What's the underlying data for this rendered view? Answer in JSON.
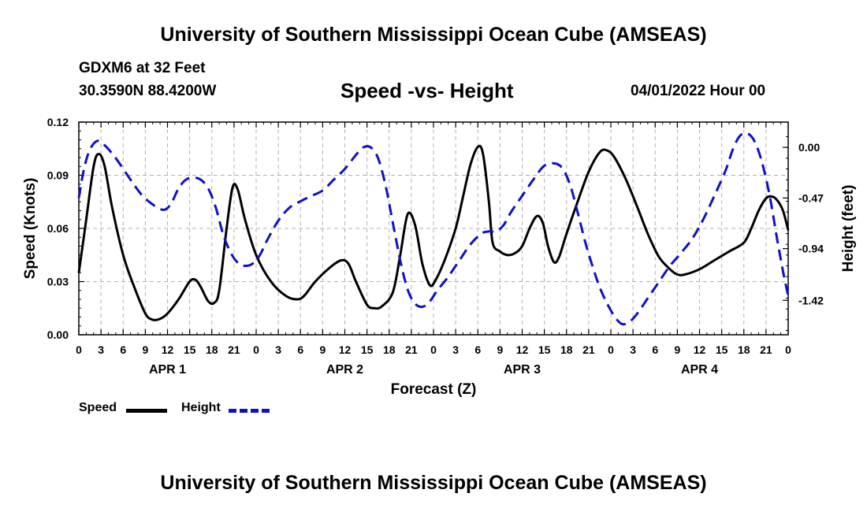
{
  "header": {
    "title": "University of Southern Mississippi Ocean Cube (AMSEAS)",
    "station": "GDXM6 at 32 Feet",
    "coords": "30.3590N  88.4200W",
    "subtitle": "Speed -vs- Height",
    "datetime": "04/01/2022 Hour 00"
  },
  "footer": {
    "title": "University of Southern Mississippi Ocean Cube (AMSEAS)"
  },
  "legend": {
    "speed_label": "Speed",
    "height_label": "Height"
  },
  "colors": {
    "speed": "#000000",
    "height": "#1010c8",
    "grid": "#b0b0b0"
  },
  "chart_data": {
    "type": "line",
    "title": "Speed -vs- Height",
    "xlabel": "Forecast (Z)",
    "ylabel": "Speed (Knots)",
    "y2label": "Height (feet)",
    "grid": true,
    "xlim": [
      0,
      96
    ],
    "ylim": [
      0,
      0.12
    ],
    "y2lim": [
      -1.74,
      0.235
    ],
    "x_ticks": [
      0,
      3,
      6,
      9,
      12,
      15,
      18,
      21,
      24,
      27,
      30,
      33,
      36,
      39,
      42,
      45,
      48,
      51,
      54,
      57,
      60,
      63,
      66,
      69,
      72,
      75,
      78,
      81,
      84,
      87,
      90,
      93,
      96
    ],
    "x_tick_labels": [
      "0",
      "3",
      "6",
      "9",
      "12",
      "15",
      "18",
      "21",
      "0",
      "3",
      "6",
      "9",
      "12",
      "15",
      "18",
      "21",
      "0",
      "3",
      "6",
      "9",
      "12",
      "15",
      "18",
      "21",
      "0",
      "3",
      "6",
      "9",
      "12",
      "15",
      "18",
      "21",
      "0"
    ],
    "y_ticks": [
      0,
      0.03,
      0.06,
      0.09,
      0.12
    ],
    "y_tick_labels": [
      "0.00",
      "0.03",
      "0.06",
      "0.09",
      "0.12"
    ],
    "y2_ticks": [
      0,
      -0.47,
      -0.94,
      -1.42
    ],
    "y2_tick_labels": [
      "0.00",
      "-0.47",
      "-0.94",
      "-1.42"
    ],
    "day_labels": [
      {
        "x": 12,
        "label": "APR 1"
      },
      {
        "x": 36,
        "label": "APR 2"
      },
      {
        "x": 60,
        "label": "APR 3"
      },
      {
        "x": 84,
        "label": "APR 4"
      }
    ],
    "series": [
      {
        "name": "Speed",
        "axis": "left",
        "style": "solid",
        "points": [
          [
            0,
            0.035
          ],
          [
            1,
            0.065
          ],
          [
            2,
            0.095
          ],
          [
            2.7,
            0.102
          ],
          [
            3.5,
            0.095
          ],
          [
            4.5,
            0.072
          ],
          [
            6,
            0.045
          ],
          [
            7.5,
            0.027
          ],
          [
            9,
            0.012
          ],
          [
            10,
            0.0085
          ],
          [
            11,
            0.009
          ],
          [
            12,
            0.012
          ],
          [
            13.5,
            0.02
          ],
          [
            15,
            0.03
          ],
          [
            15.8,
            0.031
          ],
          [
            16.5,
            0.027
          ],
          [
            17.5,
            0.019
          ],
          [
            18.3,
            0.018
          ],
          [
            19,
            0.025
          ],
          [
            20,
            0.06
          ],
          [
            20.8,
            0.083
          ],
          [
            21.5,
            0.082
          ],
          [
            22.5,
            0.065
          ],
          [
            24,
            0.045
          ],
          [
            26,
            0.03
          ],
          [
            28,
            0.022
          ],
          [
            29.5,
            0.02
          ],
          [
            30.5,
            0.022
          ],
          [
            32,
            0.03
          ],
          [
            34,
            0.038
          ],
          [
            35.5,
            0.042
          ],
          [
            36.5,
            0.04
          ],
          [
            37.5,
            0.03
          ],
          [
            39,
            0.017
          ],
          [
            40,
            0.015
          ],
          [
            41,
            0.016
          ],
          [
            42.5,
            0.024
          ],
          [
            43.5,
            0.045
          ],
          [
            44.5,
            0.068
          ],
          [
            45.5,
            0.062
          ],
          [
            46.5,
            0.04
          ],
          [
            47.5,
            0.028
          ],
          [
            48.3,
            0.031
          ],
          [
            49.5,
            0.042
          ],
          [
            51,
            0.06
          ],
          [
            52,
            0.078
          ],
          [
            53,
            0.096
          ],
          [
            54,
            0.106
          ],
          [
            54.7,
            0.102
          ],
          [
            55.5,
            0.075
          ],
          [
            56,
            0.052
          ],
          [
            57,
            0.047
          ],
          [
            58,
            0.045
          ],
          [
            59,
            0.046
          ],
          [
            60,
            0.05
          ],
          [
            61,
            0.06
          ],
          [
            62,
            0.067
          ],
          [
            62.8,
            0.063
          ],
          [
            63.5,
            0.05
          ],
          [
            64.3,
            0.041
          ],
          [
            65,
            0.044
          ],
          [
            66,
            0.057
          ],
          [
            67.5,
            0.075
          ],
          [
            69,
            0.092
          ],
          [
            70.5,
            0.103
          ],
          [
            71.5,
            0.104
          ],
          [
            72.5,
            0.1
          ],
          [
            74,
            0.088
          ],
          [
            75.5,
            0.073
          ],
          [
            77,
            0.057
          ],
          [
            78.5,
            0.044
          ],
          [
            80,
            0.037
          ],
          [
            81,
            0.034
          ],
          [
            82,
            0.034
          ],
          [
            84,
            0.037
          ],
          [
            86,
            0.042
          ],
          [
            88,
            0.047
          ],
          [
            90,
            0.052
          ],
          [
            91,
            0.06
          ],
          [
            92,
            0.07
          ],
          [
            93,
            0.077
          ],
          [
            93.8,
            0.078
          ],
          [
            94.5,
            0.076
          ],
          [
            95.3,
            0.07
          ],
          [
            96,
            0.059
          ]
        ]
      },
      {
        "name": "Height",
        "axis": "right",
        "style": "dashed",
        "points": [
          [
            0,
            -0.47
          ],
          [
            0.7,
            -0.2
          ],
          [
            1.5,
            -0.02
          ],
          [
            2.5,
            0.06
          ],
          [
            3.5,
            0.02
          ],
          [
            5,
            -0.1
          ],
          [
            7,
            -0.3
          ],
          [
            8.5,
            -0.44
          ],
          [
            10,
            -0.53
          ],
          [
            11.5,
            -0.58
          ],
          [
            12.5,
            -0.52
          ],
          [
            13.5,
            -0.38
          ],
          [
            14.5,
            -0.3
          ],
          [
            15.5,
            -0.28
          ],
          [
            16.5,
            -0.3
          ],
          [
            17.5,
            -0.38
          ],
          [
            18.5,
            -0.55
          ],
          [
            19.5,
            -0.8
          ],
          [
            20.5,
            -0.97
          ],
          [
            21.5,
            -1.07
          ],
          [
            22.5,
            -1.1
          ],
          [
            23.5,
            -1.08
          ],
          [
            24.5,
            -1.0
          ],
          [
            25.5,
            -0.86
          ],
          [
            27,
            -0.68
          ],
          [
            28.5,
            -0.56
          ],
          [
            30,
            -0.5
          ],
          [
            31.5,
            -0.45
          ],
          [
            33,
            -0.4
          ],
          [
            34.5,
            -0.3
          ],
          [
            36,
            -0.2
          ],
          [
            37.5,
            -0.07
          ],
          [
            38.5,
            0.0
          ],
          [
            39.5,
            0.0
          ],
          [
            40.5,
            -0.1
          ],
          [
            41.5,
            -0.35
          ],
          [
            42.5,
            -0.7
          ],
          [
            43.5,
            -1.05
          ],
          [
            44.5,
            -1.32
          ],
          [
            45.5,
            -1.45
          ],
          [
            46.5,
            -1.48
          ],
          [
            47.5,
            -1.43
          ],
          [
            48.5,
            -1.33
          ],
          [
            50,
            -1.2
          ],
          [
            51.5,
            -1.05
          ],
          [
            53,
            -0.9
          ],
          [
            54.5,
            -0.8
          ],
          [
            55.5,
            -0.78
          ],
          [
            56.5,
            -0.78
          ],
          [
            57.5,
            -0.72
          ],
          [
            58.5,
            -0.6
          ],
          [
            60,
            -0.45
          ],
          [
            61.5,
            -0.3
          ],
          [
            63,
            -0.17
          ],
          [
            64.5,
            -0.15
          ],
          [
            65.5,
            -0.2
          ],
          [
            66.5,
            -0.35
          ],
          [
            67.5,
            -0.6
          ],
          [
            68.5,
            -0.87
          ],
          [
            69.5,
            -1.1
          ],
          [
            70.5,
            -1.3
          ],
          [
            71.5,
            -1.45
          ],
          [
            72.5,
            -1.57
          ],
          [
            73.5,
            -1.64
          ],
          [
            74.5,
            -1.62
          ],
          [
            75.5,
            -1.55
          ],
          [
            77,
            -1.4
          ],
          [
            78.5,
            -1.25
          ],
          [
            80,
            -1.1
          ],
          [
            81.5,
            -0.98
          ],
          [
            83,
            -0.85
          ],
          [
            84.5,
            -0.67
          ],
          [
            86,
            -0.45
          ],
          [
            87.5,
            -0.22
          ],
          [
            88.5,
            -0.02
          ],
          [
            89.5,
            0.11
          ],
          [
            90.5,
            0.13
          ],
          [
            91.5,
            0.05
          ],
          [
            92.5,
            -0.15
          ],
          [
            93.5,
            -0.45
          ],
          [
            94.5,
            -0.85
          ],
          [
            95.3,
            -1.15
          ],
          [
            96,
            -1.38
          ]
        ]
      }
    ]
  }
}
